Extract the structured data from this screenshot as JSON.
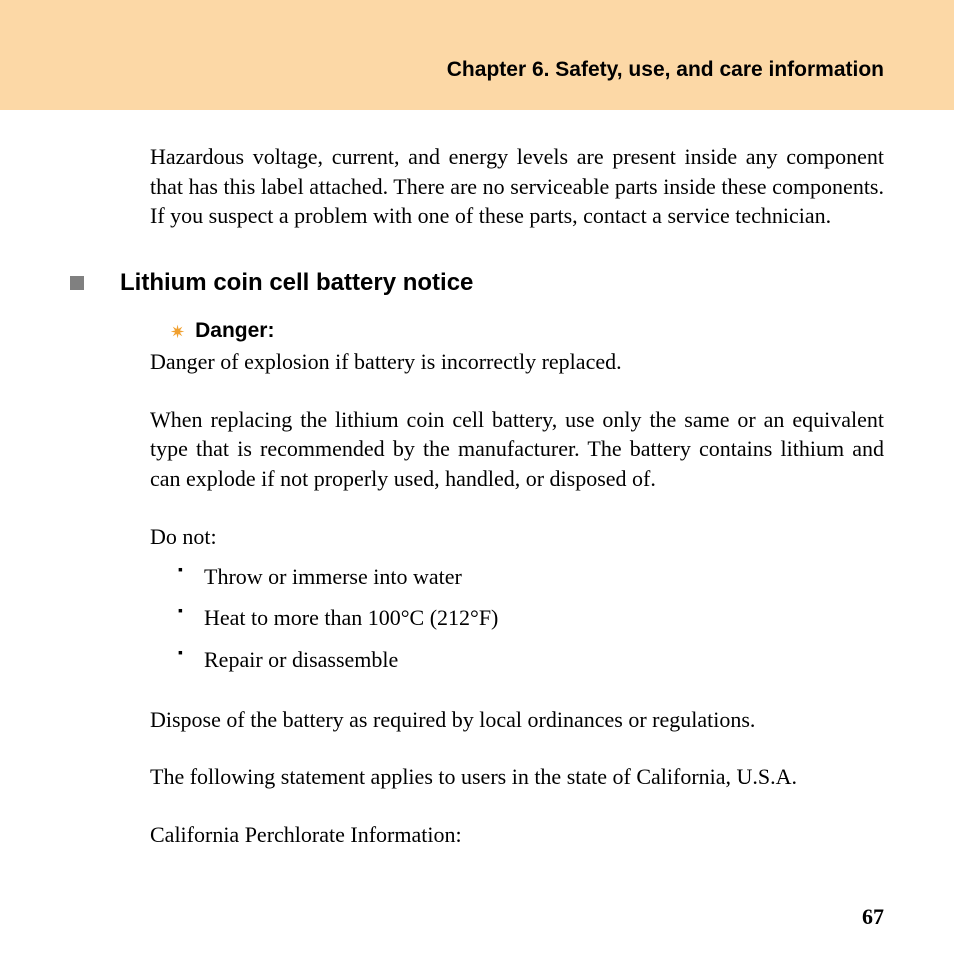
{
  "header": {
    "chapter_title": "Chapter 6. Safety, use, and care information",
    "band_color": "#fcd8a6"
  },
  "intro_paragraph": "Hazardous voltage, current, and energy levels are present inside any component that has this label attached. There are no serviceable parts inside these components. If you suspect a problem with one of these parts, contact a service technician.",
  "section": {
    "bullet_color": "#808080",
    "heading": "Lithium coin cell battery notice",
    "danger_label": "Danger:",
    "danger_icon_color": "#f0a030",
    "danger_line": "Danger of explosion if battery is incorrectly replaced.",
    "replace_para": "When replacing the lithium coin cell battery, use only the same or an equivalent type that is recommended by the manufacturer. The battery contains lithium and can explode if not properly used, handled, or disposed of.",
    "do_not_label": "Do not:",
    "do_not_items": [
      "Throw or immerse into water",
      "Heat to more than 100°C (212°F)",
      "Repair or disassemble"
    ],
    "dispose_para": "Dispose of the battery as required by local ordinances or regulations.",
    "california_para": "The following statement applies to users in the state of California, U.S.A.",
    "perchlorate_para": "California Perchlorate Information:"
  },
  "page_number": "67",
  "typography": {
    "body_font": "Palatino",
    "body_fontsize_pt": 16,
    "heading_font": "Arial",
    "heading_fontsize_pt": 18,
    "chapter_fontsize_pt": 16,
    "text_color": "#000000",
    "background_color": "#ffffff"
  }
}
